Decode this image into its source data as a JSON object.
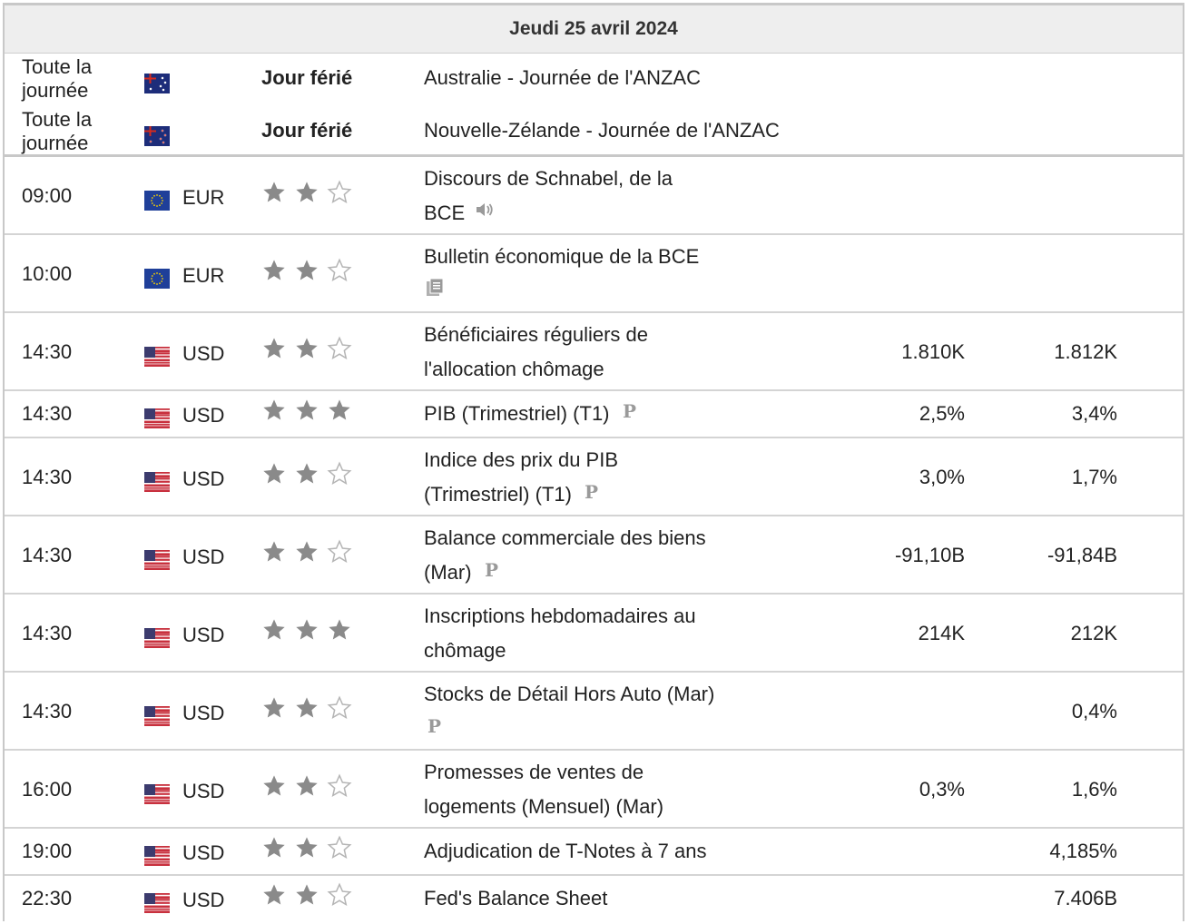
{
  "day_title": "Jeudi 25 avril 2024",
  "holidays": [
    {
      "time": "Toute la journée",
      "time_line1": "Toute la",
      "time_line2": "journée",
      "flag": "australia-flag",
      "label": "Jour férié",
      "event": "Australie - Journée de l'ANZAC"
    },
    {
      "time": "Toute la journée",
      "time_line1": "Toute la",
      "time_line2": "journée",
      "flag": "new-zealand-flag",
      "label": "Jour férié",
      "event": "Nouvelle-Zélande - Journée de l'ANZAC"
    }
  ],
  "events": [
    {
      "time": "09:00",
      "flag": "eu-flag",
      "currency": "EUR",
      "importance": 2,
      "title_line1": "Discours de Schnabel, de la",
      "title_line2": "BCE",
      "icon": "speaker-icon",
      "actual": "",
      "forecast": "",
      "previous": ""
    },
    {
      "time": "10:00",
      "flag": "eu-flag",
      "currency": "EUR",
      "importance": 2,
      "title_line1": "Bulletin économique de la BCE",
      "title_line2": "",
      "icon": "document-icon",
      "actual": "",
      "forecast": "",
      "previous": ""
    },
    {
      "time": "14:30",
      "flag": "us-flag",
      "currency": "USD",
      "importance": 2,
      "title_line1": "Bénéficiaires réguliers de",
      "title_line2": "l'allocation chômage",
      "icon": "",
      "actual": "",
      "forecast": "1.810K",
      "previous": "1.812K"
    },
    {
      "time": "14:30",
      "flag": "us-flag",
      "currency": "USD",
      "importance": 3,
      "title_line1": "PIB (Trimestriel) (T1)",
      "title_line2": "",
      "icon": "preliminary-icon",
      "actual": "",
      "forecast": "2,5%",
      "previous": "3,4%"
    },
    {
      "time": "14:30",
      "flag": "us-flag",
      "currency": "USD",
      "importance": 2,
      "title_line1": "Indice des prix du PIB",
      "title_line2": "(Trimestriel) (T1)",
      "icon": "preliminary-icon",
      "actual": "",
      "forecast": "3,0%",
      "previous": "1,7%"
    },
    {
      "time": "14:30",
      "flag": "us-flag",
      "currency": "USD",
      "importance": 2,
      "title_line1": "Balance commerciale des biens",
      "title_line2": "(Mar)",
      "icon": "preliminary-icon",
      "actual": "",
      "forecast": "-91,10B",
      "previous": "-91,84B"
    },
    {
      "time": "14:30",
      "flag": "us-flag",
      "currency": "USD",
      "importance": 3,
      "title_line1": "Inscriptions hebdomadaires au",
      "title_line2": "chômage",
      "icon": "",
      "actual": "",
      "forecast": "214K",
      "previous": "212K"
    },
    {
      "time": "14:30",
      "flag": "us-flag",
      "currency": "USD",
      "importance": 2,
      "title_line1": "Stocks de Détail Hors Auto (Mar)",
      "title_line2": "",
      "icon": "preliminary-icon",
      "actual": "",
      "forecast": "",
      "previous": "0,4%"
    },
    {
      "time": "16:00",
      "flag": "us-flag",
      "currency": "USD",
      "importance": 2,
      "title_line1": "Promesses de ventes de",
      "title_line2": "logements (Mensuel) (Mar)",
      "icon": "",
      "actual": "",
      "forecast": "0,3%",
      "previous": "1,6%"
    },
    {
      "time": "19:00",
      "flag": "us-flag",
      "currency": "USD",
      "importance": 2,
      "title_line1": "Adjudication de T-Notes à 7 ans",
      "title_line2": "",
      "icon": "",
      "actual": "",
      "forecast": "",
      "previous": "4,185%"
    },
    {
      "time": "22:30",
      "flag": "us-flag",
      "currency": "USD",
      "importance": 2,
      "title_line1": "Fed's Balance Sheet",
      "title_line2": "",
      "icon": "",
      "actual": "",
      "forecast": "",
      "previous": "7.406B"
    }
  ],
  "colors": {
    "star_filled": "#8a8a8a",
    "star_empty": "#b5b5b5",
    "border": "#c8c8c8",
    "header_bg": "#eeeeee"
  }
}
